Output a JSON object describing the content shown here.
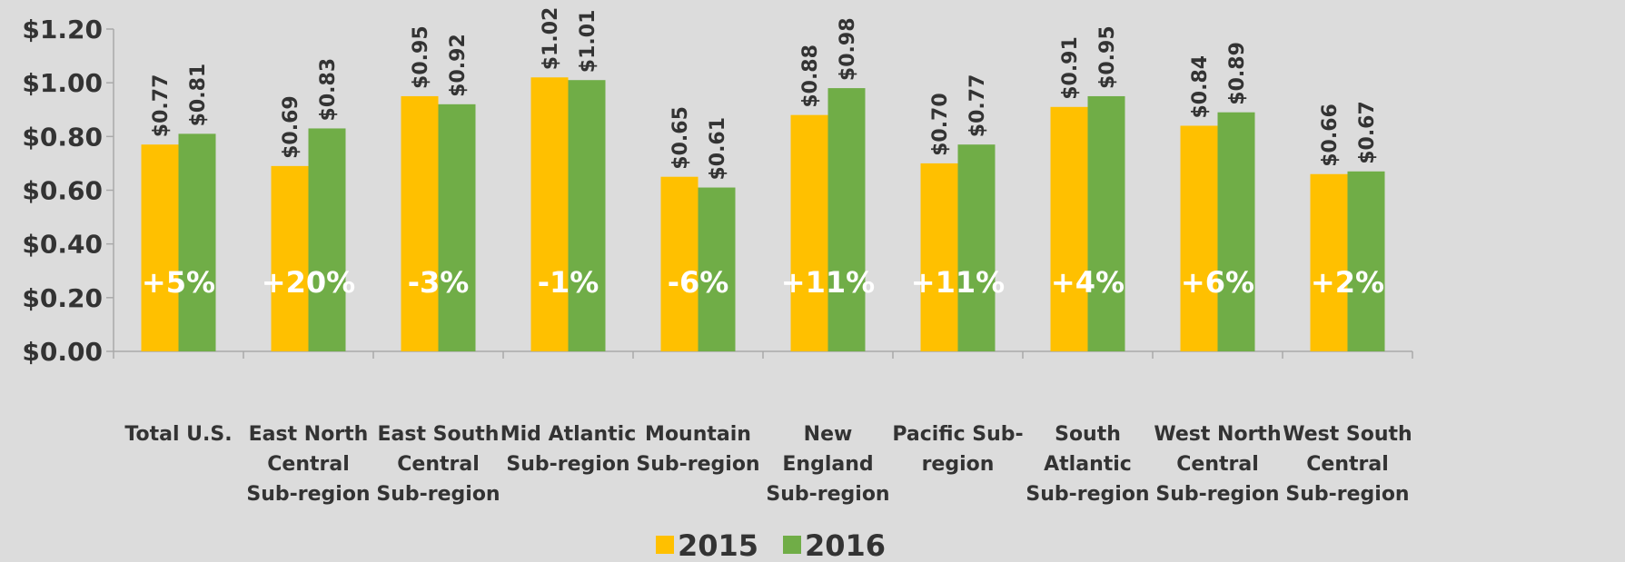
{
  "chart_data": {
    "type": "bar",
    "categories": [
      "Total U.S.",
      "East North Central Sub-region",
      "East South Central Sub-region",
      "Mid Atlantic Sub-region",
      "Mountain Sub-region",
      "New England Sub-region",
      "Pacific Sub-region",
      "South Atlantic Sub-region",
      "West North Central Sub-region",
      "West South Central Sub-region"
    ],
    "series": [
      {
        "name": "2015",
        "color": "#ffc000",
        "values": [
          0.77,
          0.69,
          0.95,
          1.02,
          0.65,
          0.88,
          0.7,
          0.91,
          0.84,
          0.66
        ],
        "value_labels": [
          "$0.77",
          "$0.69",
          "$0.95",
          "$1.02",
          "$0.65",
          "$0.88",
          "$0.70",
          "$0.91",
          "$0.84",
          "$0.66"
        ]
      },
      {
        "name": "2016",
        "color": "#70ad47",
        "values": [
          0.81,
          0.83,
          0.92,
          1.01,
          0.61,
          0.98,
          0.77,
          0.95,
          0.89,
          0.67
        ],
        "value_labels": [
          "$0.81",
          "$0.83",
          "$0.92",
          "$1.01",
          "$0.61",
          "$0.98",
          "$0.77",
          "$0.95",
          "$0.89",
          "$0.67"
        ]
      }
    ],
    "annotations": [
      "+5%",
      "+20%",
      "-3%",
      "-1%",
      "-6%",
      "+11%",
      "+11%",
      "+4%",
      "+6%",
      "+2%"
    ],
    "ylim": [
      0,
      1.2
    ],
    "yticks": [
      {
        "value": 0,
        "label": "$0.00"
      },
      {
        "value": 0.2,
        "label": "$0.20"
      },
      {
        "value": 0.4,
        "label": "$0.40"
      },
      {
        "value": 0.6,
        "label": "$0.60"
      },
      {
        "value": 0.8,
        "label": "$0.80"
      },
      {
        "value": 1.0,
        "label": "$1.00"
      },
      {
        "value": 1.2,
        "label": "$1.20"
      }
    ],
    "legend": "bottom"
  }
}
